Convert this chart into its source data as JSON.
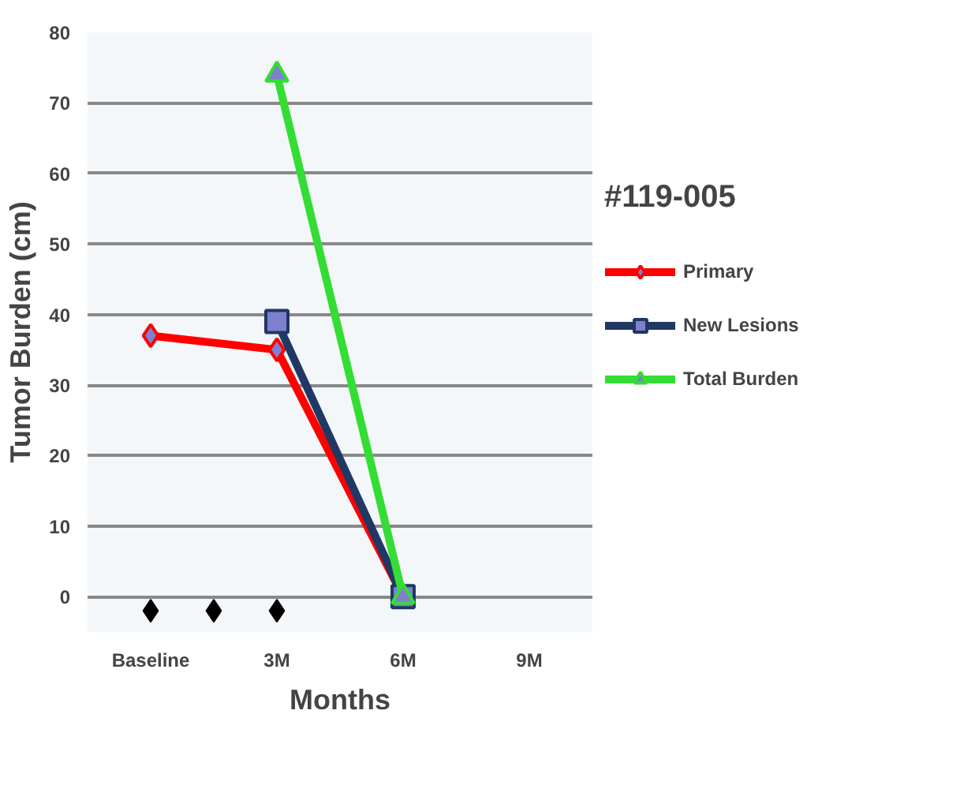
{
  "chart_data": {
    "type": "line",
    "title": "#119-005",
    "xlabel": "Months",
    "ylabel": "Tumor Burden (cm)",
    "categories": [
      "Baseline",
      null,
      "3M",
      null,
      "6M",
      null,
      "9M"
    ],
    "series": [
      {
        "name": "Primary",
        "color": "#ff0000",
        "marker": "diamond",
        "values": [
          37,
          null,
          35,
          null,
          0,
          null,
          null
        ]
      },
      {
        "name": "New Lesions",
        "color": "#1f3864",
        "marker": "square",
        "values": [
          null,
          null,
          39,
          null,
          0,
          null,
          null
        ]
      },
      {
        "name": "Total Burden",
        "color": "#33dd33",
        "marker": "triangle",
        "values": [
          null,
          null,
          74,
          null,
          0,
          null,
          null
        ]
      },
      {
        "type": "scatter",
        "color": "#000000",
        "marker": "diamond",
        "values": [
          -2,
          -2,
          -2,
          null,
          null,
          null,
          null
        ]
      }
    ],
    "ylim": [
      -5,
      80
    ],
    "yticks": [
      0,
      10,
      20,
      30,
      40,
      50,
      60,
      70,
      80
    ],
    "grid": "y",
    "legend": "right"
  }
}
